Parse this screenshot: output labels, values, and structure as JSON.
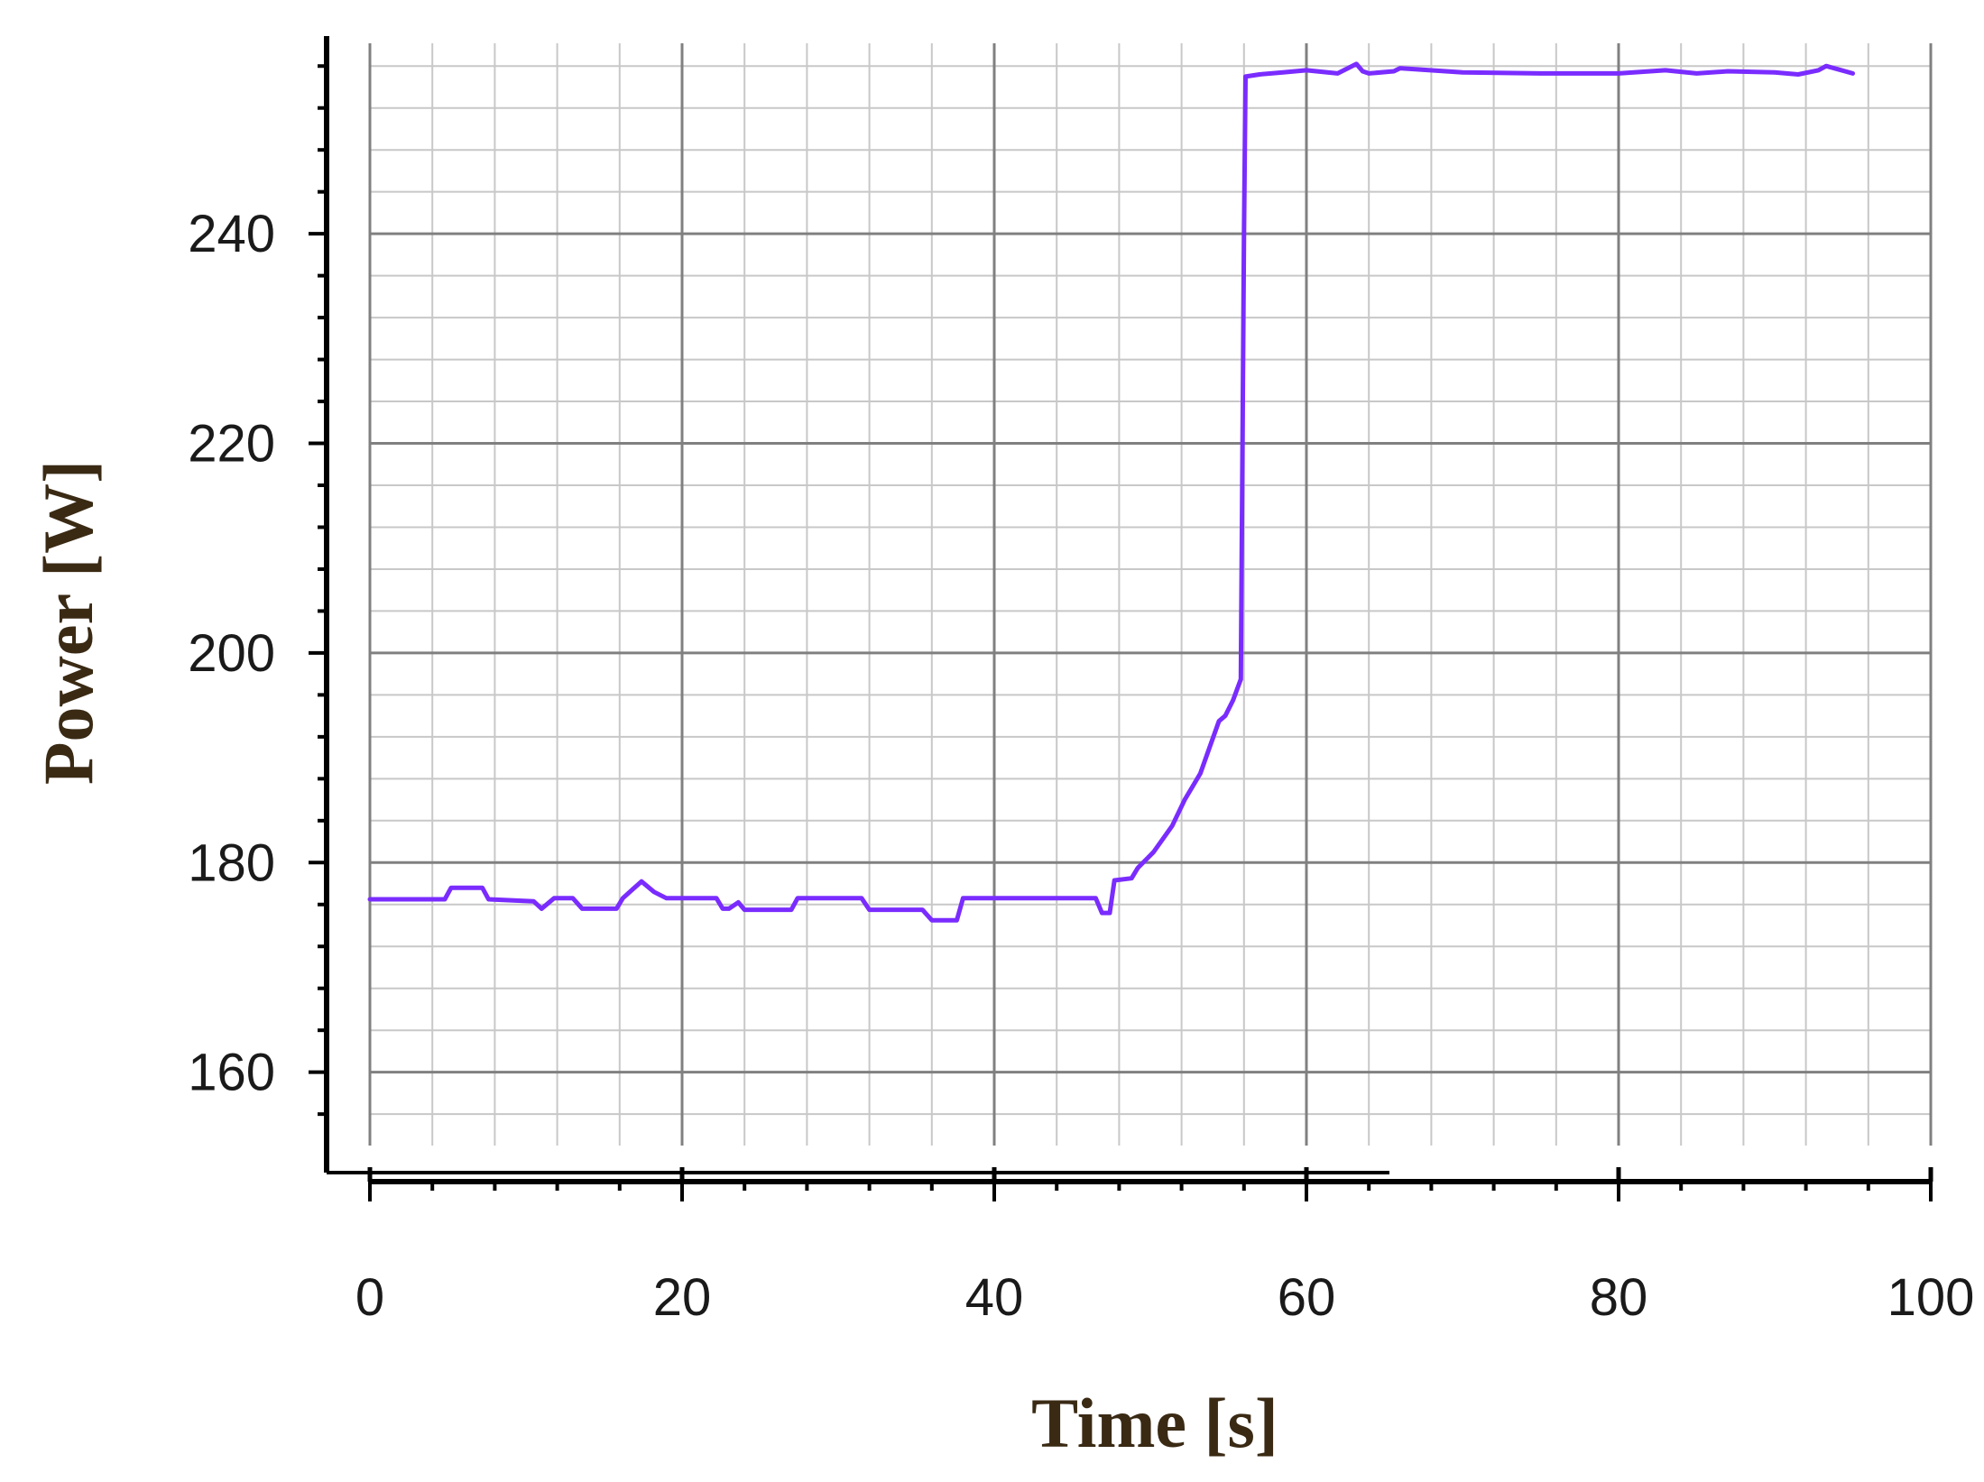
{
  "chart_data": {
    "type": "line",
    "xlabel": "Time [s]",
    "ylabel": "Power [W]",
    "xlim": [
      0,
      100
    ],
    "ylim": [
      153,
      258
    ],
    "xticks": [
      0,
      20,
      40,
      60,
      80,
      100
    ],
    "yticks": [
      160,
      180,
      200,
      220,
      240
    ],
    "grid": true,
    "colors": {
      "line": "#7a2cff",
      "axis_title": "#3a2a14",
      "grid_major": "#808080",
      "grid_minor": "#c8c8c8"
    },
    "series": [
      {
        "x": [
          0,
          3,
          4.8,
          5.2,
          7.2,
          7.6,
          10.5,
          11,
          11.8,
          12.2,
          13,
          13.6,
          15.8,
          16.2,
          16.8,
          17.4,
          18.2,
          19,
          22.2,
          22.6,
          23,
          23.6,
          24,
          27,
          27.4,
          31.5,
          32,
          35.4,
          36,
          37.6,
          38,
          46.5,
          46.9,
          47.4,
          47.7,
          48.8,
          49.2,
          50.2,
          51.4,
          52.2,
          53.2,
          53.8,
          54.4,
          54.8,
          55.3,
          55.8,
          56,
          56.1,
          57,
          58.5,
          60,
          62,
          63.2,
          63.6,
          64,
          65.6,
          66,
          70,
          75,
          80,
          83,
          85,
          87,
          90,
          91.5,
          92.8,
          93.3,
          95
        ],
        "y": [
          176.5,
          176.5,
          176.5,
          177.6,
          177.6,
          176.5,
          176.3,
          175.6,
          176.6,
          176.6,
          176.6,
          175.6,
          175.6,
          176.6,
          177.4,
          178.2,
          177.2,
          176.6,
          176.6,
          175.6,
          175.6,
          176.2,
          175.5,
          175.5,
          176.6,
          176.6,
          175.5,
          175.5,
          174.5,
          174.5,
          176.6,
          176.6,
          175.2,
          175.2,
          178.3,
          178.5,
          179.5,
          181,
          183.5,
          186,
          188.5,
          191,
          193.5,
          194,
          195.5,
          197.5,
          240,
          255,
          255.2,
          255.4,
          255.6,
          255.3,
          256.2,
          255.5,
          255.3,
          255.5,
          255.8,
          255.4,
          255.3,
          255.3,
          255.6,
          255.3,
          255.5,
          255.4,
          255.2,
          255.6,
          256,
          255.3
        ]
      }
    ]
  }
}
